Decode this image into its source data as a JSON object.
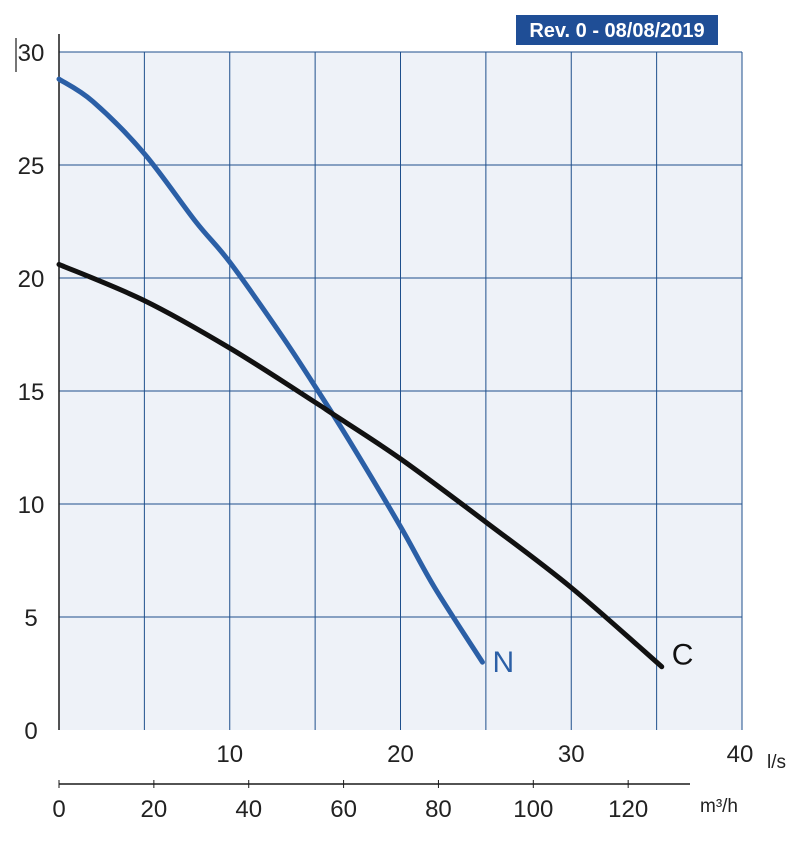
{
  "revision_badge": "Rev. 0 - 08/08/2019",
  "colors": {
    "plot_background": "#eef2f8",
    "grid": "#1e4f8c",
    "badge_background": "#1f4e96",
    "curve_N": "#2b5fa6",
    "curve_C": "#111111"
  },
  "chart_data": {
    "type": "line",
    "x_primary": {
      "unit": "l/s",
      "ticks": [
        10,
        20,
        30,
        40
      ],
      "range": [
        0,
        40
      ]
    },
    "x_secondary": {
      "unit": "m³/h",
      "ticks": [
        0,
        20,
        40,
        60,
        80,
        100,
        120
      ],
      "range": [
        0,
        144
      ]
    },
    "y": {
      "ticks": [
        0,
        5,
        10,
        15,
        20,
        25,
        30
      ],
      "range": [
        0,
        30
      ]
    },
    "grid": true,
    "series": [
      {
        "name": "N",
        "x": [
          0,
          2,
          5,
          8,
          10,
          13,
          15,
          17,
          20,
          22,
          24.8
        ],
        "y": [
          28.8,
          27.8,
          25.5,
          22.5,
          20.7,
          17.5,
          15.2,
          12.8,
          9.0,
          6.3,
          3.0
        ]
      },
      {
        "name": "C",
        "x": [
          0,
          5,
          10,
          15,
          16,
          20,
          25,
          30,
          35.3
        ],
        "y": [
          20.6,
          19.0,
          16.9,
          14.5,
          14.0,
          12.0,
          9.2,
          6.3,
          2.8
        ]
      }
    ]
  }
}
